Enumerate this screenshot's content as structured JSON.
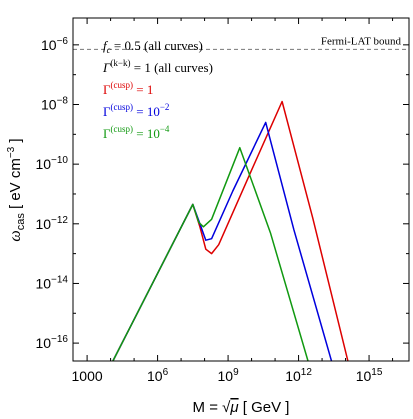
{
  "chart_data": {
    "type": "line",
    "xlabel": "M = √μ   [ GeV ]",
    "ylabel": "ω_cas  [ eV cm⁻³ ]",
    "x_scale": "log",
    "y_scale": "log",
    "xlim_log10": [
      2.4,
      16.7
    ],
    "ylim_log10": [
      -16.6,
      -5.1
    ],
    "x_ticks": [
      {
        "log10": 3,
        "label": "1000"
      },
      {
        "log10": 6,
        "label": "10^6"
      },
      {
        "log10": 9,
        "label": "10^9"
      },
      {
        "log10": 12,
        "label": "10^12"
      },
      {
        "log10": 15,
        "label": "10^15"
      }
    ],
    "y_ticks": [
      {
        "log10": -6,
        "label": "10^-6"
      },
      {
        "log10": -8,
        "label": "10^-8"
      },
      {
        "log10": -10,
        "label": "10^-10"
      },
      {
        "log10": -12,
        "label": "10^-12"
      },
      {
        "log10": -14,
        "label": "10^-14"
      },
      {
        "log10": -16,
        "label": "10^-16"
      }
    ],
    "reference_line": {
      "log10_y": -6.15,
      "label": "Fermi-LAT bound",
      "style": "dashed",
      "color": "#777777"
    },
    "legend": {
      "common": [
        {
          "main": "f",
          "sub": "c",
          "rest": " = 0.5 (all curves)"
        },
        {
          "main": "Γ",
          "sup": "(k−k)",
          "rest": " = 1 (all curves)"
        }
      ],
      "placement": "top-left"
    },
    "series": [
      {
        "name": "Γ^(cusp) = 1",
        "label_main": "Γ",
        "label_sup": "(cusp)",
        "label_rest": " = 1",
        "color": "#dd0000",
        "points_log10": [
          [
            4.1,
            -16.6
          ],
          [
            7.5,
            -11.35
          ],
          [
            7.8,
            -12.1
          ],
          [
            8.05,
            -12.85
          ],
          [
            8.3,
            -13.0
          ],
          [
            8.6,
            -12.7
          ],
          [
            10.0,
            -10.2
          ],
          [
            11.3,
            -7.9
          ],
          [
            12.6,
            -11.8
          ],
          [
            14.1,
            -16.6
          ]
        ]
      },
      {
        "name": "Γ^(cusp) = 10^-2",
        "label_main": "Γ",
        "label_sup": "(cusp)",
        "label_rest": " = 10",
        "label_rest_sup": "−2",
        "color": "#0000dd",
        "points_log10": [
          [
            4.1,
            -16.6
          ],
          [
            7.5,
            -11.35
          ],
          [
            7.8,
            -12.0
          ],
          [
            8.05,
            -12.55
          ],
          [
            8.3,
            -12.5
          ],
          [
            9.2,
            -10.9
          ],
          [
            10.6,
            -8.6
          ],
          [
            11.8,
            -12.2
          ],
          [
            13.4,
            -16.6
          ]
        ]
      },
      {
        "name": "Γ^(cusp) = 10^-4",
        "label_main": "Γ",
        "label_sup": "(cusp)",
        "label_rest": " = 10",
        "label_rest_sup": "−4",
        "color": "#119911",
        "points_log10": [
          [
            4.1,
            -16.6
          ],
          [
            7.5,
            -11.35
          ],
          [
            7.75,
            -11.95
          ],
          [
            7.95,
            -12.1
          ],
          [
            8.3,
            -11.85
          ],
          [
            9.5,
            -9.45
          ],
          [
            10.8,
            -12.3
          ],
          [
            12.4,
            -16.6
          ]
        ]
      }
    ]
  }
}
